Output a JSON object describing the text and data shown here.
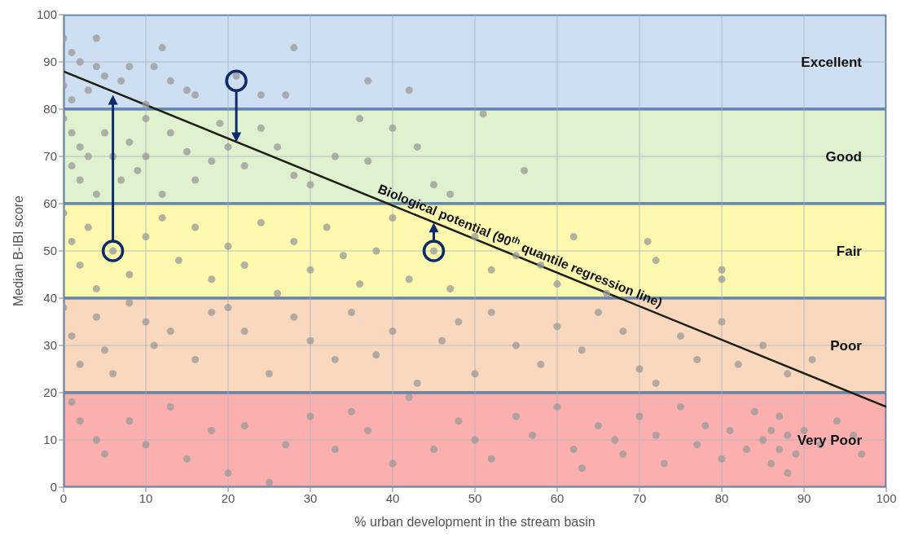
{
  "chart_data": {
    "type": "scatter",
    "xlabel": "% urban development in the stream basin",
    "ylabel": "Median B-IBI score",
    "xlim": [
      0,
      100
    ],
    "xticks": [
      0,
      10,
      20,
      30,
      40,
      50,
      60,
      70,
      80,
      90,
      100
    ],
    "ylim": [
      0,
      100
    ],
    "yticks": [
      0,
      10,
      20,
      30,
      40,
      50,
      60,
      70,
      80,
      90,
      100
    ],
    "grid": true,
    "annotations": [
      "Biological potential (90$^{th}$ quantile regression line)"
    ],
    "bands": [
      {
        "axis": "y",
        "from": 80,
        "to": 100,
        "label": "Excellent",
        "color": "#c9dcef"
      },
      {
        "axis": "y",
        "from": 60,
        "to": 80,
        "label": "Good",
        "color": "#ddefcb"
      },
      {
        "axis": "y",
        "from": 40,
        "to": 60,
        "label": "Fair",
        "color": "#fdf9a6"
      },
      {
        "axis": "y",
        "from": 20,
        "to": 40,
        "label": "Poor",
        "color": "#f8d4b6"
      },
      {
        "axis": "y",
        "from": 0,
        "to": 20,
        "label": "Very Poor",
        "color": "#fba6a6"
      }
    ],
    "series": [
      {
        "color": "#9a9a9a",
        "marker": "circle",
        "x": [
          0,
          1,
          2,
          4,
          4,
          7,
          8,
          11,
          12,
          13,
          15,
          16,
          21,
          24,
          27,
          28,
          37,
          42,
          0,
          3,
          5,
          1,
          10,
          0,
          1,
          2,
          1,
          3,
          2,
          4,
          5,
          6,
          7,
          8,
          9,
          10,
          10,
          12,
          13,
          15,
          16,
          18,
          19,
          20,
          22,
          24,
          26,
          28,
          30,
          33,
          36,
          40,
          37,
          43,
          45,
          47,
          51,
          56,
          0,
          1,
          2,
          3,
          4,
          6,
          8,
          10,
          12,
          14,
          16,
          18,
          20,
          22,
          24,
          26,
          28,
          30,
          32,
          34,
          36,
          38,
          40,
          42,
          45,
          47,
          50,
          52,
          55,
          58,
          60,
          62,
          66,
          71,
          72,
          80,
          80,
          0,
          1,
          2,
          4,
          5,
          6,
          8,
          10,
          11,
          13,
          16,
          18,
          20,
          22,
          25,
          28,
          30,
          33,
          35,
          38,
          40,
          43,
          46,
          48,
          50,
          52,
          55,
          58,
          60,
          63,
          65,
          68,
          70,
          72,
          75,
          77,
          80,
          82,
          85,
          88,
          91,
          1,
          2,
          4,
          5,
          8,
          10,
          13,
          15,
          18,
          20,
          22,
          25,
          27,
          30,
          33,
          35,
          37,
          40,
          42,
          45,
          48,
          50,
          52,
          55,
          57,
          60,
          62,
          63,
          65,
          67,
          68,
          70,
          72,
          73,
          75,
          77,
          78,
          80,
          81,
          83,
          84,
          85,
          86,
          86,
          87,
          87,
          88,
          88,
          89,
          90,
          92,
          94,
          96,
          97
        ],
        "values": [
          95,
          92,
          90,
          95,
          89,
          86,
          89,
          89,
          93,
          86,
          84,
          83,
          87,
          83,
          83,
          93,
          86,
          84,
          85,
          84,
          87,
          82,
          81,
          78,
          75,
          72,
          68,
          70,
          65,
          62,
          75,
          70,
          65,
          73,
          67,
          78,
          70,
          62,
          75,
          71,
          65,
          69,
          77,
          72,
          68,
          76,
          72,
          66,
          64,
          70,
          78,
          76,
          69,
          72,
          64,
          62,
          79,
          67,
          58,
          52,
          47,
          55,
          42,
          50,
          45,
          53,
          57,
          48,
          55,
          44,
          51,
          47,
          56,
          41,
          52,
          46,
          55,
          49,
          43,
          50,
          57,
          44,
          50,
          42,
          53,
          46,
          49,
          47,
          43,
          53,
          41,
          52,
          48,
          46,
          44,
          38,
          32,
          26,
          36,
          29,
          24,
          39,
          35,
          30,
          33,
          27,
          37,
          38,
          33,
          24,
          36,
          31,
          27,
          37,
          28,
          33,
          22,
          31,
          35,
          24,
          37,
          30,
          26,
          34,
          29,
          37,
          33,
          25,
          22,
          32,
          27,
          35,
          26,
          30,
          24,
          27,
          18,
          14,
          10,
          7,
          14,
          9,
          17,
          6,
          12,
          3,
          13,
          1,
          9,
          15,
          8,
          16,
          12,
          5,
          19,
          8,
          14,
          10,
          6,
          15,
          11,
          17,
          8,
          4,
          13,
          10,
          7,
          15,
          11,
          5,
          17,
          9,
          13,
          6,
          12,
          8,
          16,
          10,
          5,
          12,
          8,
          15,
          3,
          11,
          7,
          12,
          9,
          14,
          11,
          7
        ]
      },
      {
        "type": "line",
        "color": "#1e1e14",
        "x": [
          0,
          100
        ],
        "values": [
          88,
          17
        ]
      }
    ]
  }
}
